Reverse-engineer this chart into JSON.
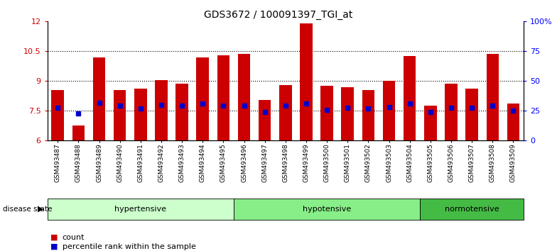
{
  "title": "GDS3672 / 100091397_TGI_at",
  "samples": [
    "GSM493487",
    "GSM493488",
    "GSM493489",
    "GSM493490",
    "GSM493491",
    "GSM493492",
    "GSM493493",
    "GSM493494",
    "GSM493495",
    "GSM493496",
    "GSM493497",
    "GSM493498",
    "GSM493499",
    "GSM493500",
    "GSM493501",
    "GSM493502",
    "GSM493503",
    "GSM493504",
    "GSM493505",
    "GSM493506",
    "GSM493507",
    "GSM493508",
    "GSM493509"
  ],
  "counts": [
    8.55,
    6.75,
    10.2,
    8.55,
    8.6,
    9.05,
    8.85,
    10.2,
    10.3,
    10.35,
    8.05,
    8.8,
    11.9,
    8.75,
    8.7,
    8.55,
    9.0,
    10.25,
    7.75,
    8.85,
    8.6,
    10.35,
    7.85
  ],
  "percentile_ranks": [
    7.65,
    7.35,
    7.9,
    7.75,
    7.6,
    7.8,
    7.75,
    7.85,
    7.75,
    7.75,
    7.45,
    7.75,
    7.85,
    7.55,
    7.65,
    7.6,
    7.7,
    7.85,
    7.45,
    7.65,
    7.65,
    7.75,
    7.5
  ],
  "ylim_left": [
    6,
    12
  ],
  "yticks_left": [
    6,
    7.5,
    9,
    10.5,
    12
  ],
  "ytick_labels_left": [
    "6",
    "7.5",
    "9",
    "10.5",
    "12"
  ],
  "yticks_right": [
    0,
    25,
    50,
    75,
    100
  ],
  "ytick_labels_right": [
    "0",
    "25",
    "50",
    "75",
    "100%"
  ],
  "hlines": [
    7.5,
    9.0,
    10.5
  ],
  "bar_color": "#cc0000",
  "dot_color": "#0000cc",
  "bar_width": 0.6,
  "group_colors": [
    "#ccffcc",
    "#88ee88",
    "#44bb44"
  ],
  "group_labels": [
    "hypertensive",
    "hypotensive",
    "normotensive"
  ],
  "group_starts": [
    0,
    9,
    18
  ],
  "group_ends": [
    8,
    17,
    22
  ],
  "disease_state_label": "disease state",
  "legend_items": [
    {
      "color": "#cc0000",
      "label": "count"
    },
    {
      "color": "#0000cc",
      "label": "percentile rank within the sample"
    }
  ]
}
